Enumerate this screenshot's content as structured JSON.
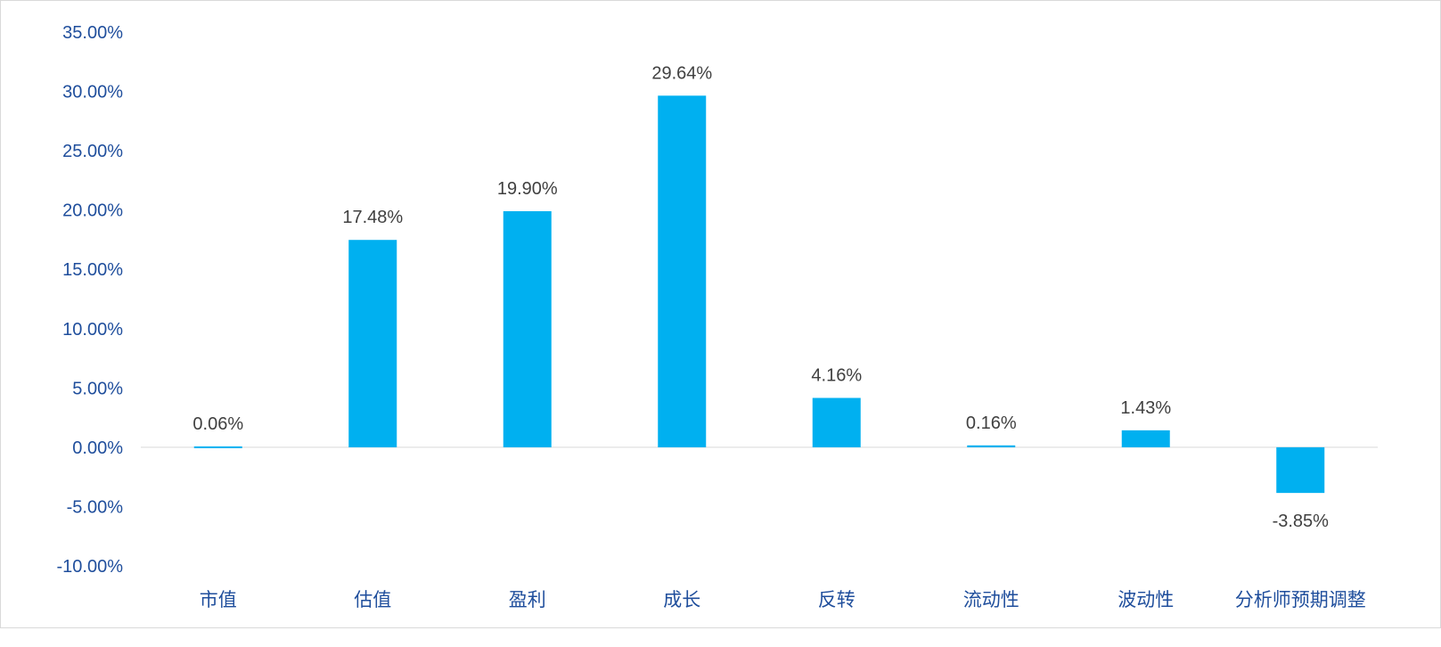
{
  "chart_data": {
    "type": "bar",
    "categories": [
      "市值",
      "估值",
      "盈利",
      "成长",
      "反转",
      "流动性",
      "波动性",
      "分析师预期调整"
    ],
    "values": [
      0.06,
      17.48,
      19.9,
      29.64,
      4.16,
      0.16,
      1.43,
      -3.85
    ],
    "data_labels": [
      "0.06%",
      "17.48%",
      "19.90%",
      "29.64%",
      "4.16%",
      "0.16%",
      "1.43%",
      "-3.85%"
    ],
    "title": "",
    "xlabel": "",
    "ylabel": "",
    "ylim": [
      -10,
      35
    ],
    "yticks": [
      35,
      30,
      25,
      20,
      15,
      10,
      5,
      0,
      -5,
      -10
    ],
    "ytick_labels": [
      "35.00%",
      "30.00%",
      "25.00%",
      "20.00%",
      "15.00%",
      "10.00%",
      "5.00%",
      "0.00%",
      "-5.00%",
      "-10.00%"
    ],
    "grid": false,
    "legend": "none",
    "colors": {
      "bar": "#00b0f0",
      "axis_text": "#1f4e9c",
      "label_text": "#404040",
      "zero_line": "#d9d9d9"
    }
  }
}
